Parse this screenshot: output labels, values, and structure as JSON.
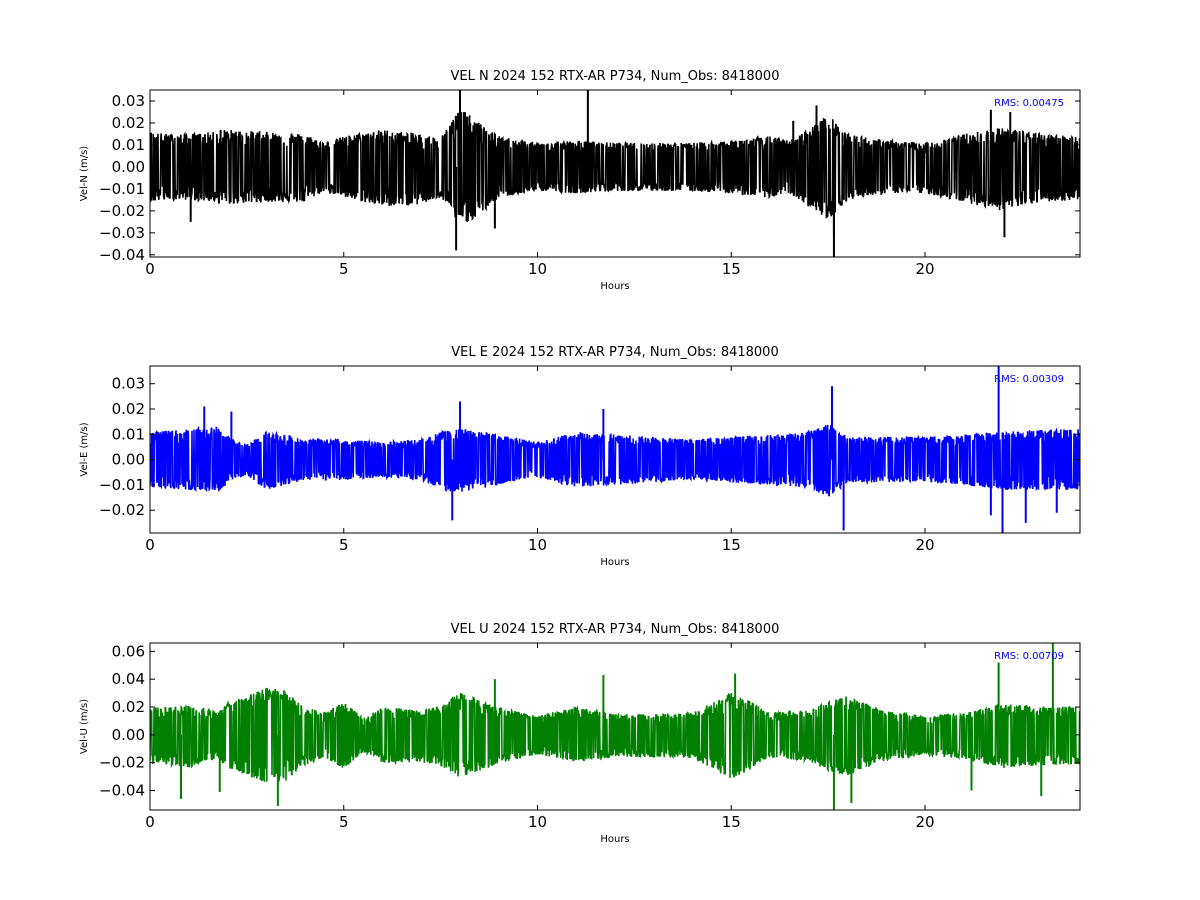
{
  "chart_data": [
    {
      "type": "line",
      "title": "VEL N 2024 152 RTX-AR  P734, Num_Obs: 8418000",
      "xlabel": "Hours",
      "ylabel": "Vel-N (m/s)",
      "xlim": [
        0,
        24
      ],
      "ylim": [
        -0.041,
        0.035
      ],
      "xticks": [
        0,
        5,
        10,
        15,
        20
      ],
      "xtick_labels": [
        "0",
        "5",
        "10",
        "15",
        "20"
      ],
      "yticks": [
        0.03,
        0.02,
        0.01,
        0.0,
        -0.01,
        -0.02,
        -0.03,
        -0.04
      ],
      "ytick_labels": [
        "0.03",
        "0.02",
        "0.01",
        "0.00",
        "−0.01",
        "−0.02",
        "−0.03",
        "−0.04"
      ],
      "rms_label": "RMS:  0.00475",
      "color": "#000000",
      "rms_color": "#0000ff",
      "grid": false,
      "envelope": {
        "x": [
          0,
          0.5,
          1,
          1.7,
          1.8,
          2,
          3,
          4,
          4.5,
          5,
          6,
          7,
          7.5,
          8,
          8.5,
          9,
          10,
          11,
          12,
          13,
          14,
          15,
          16,
          16.5,
          17,
          17.5,
          18,
          19,
          20,
          21,
          22,
          23,
          24
        ],
        "hi": [
          0.016,
          0.015,
          0.015,
          0.016,
          0.017,
          0.017,
          0.016,
          0.015,
          0.011,
          0.014,
          0.017,
          0.015,
          0.013,
          0.027,
          0.02,
          0.014,
          0.011,
          0.012,
          0.011,
          0.011,
          0.011,
          0.012,
          0.014,
          0.012,
          0.017,
          0.024,
          0.015,
          0.012,
          0.011,
          0.015,
          0.018,
          0.015,
          0.014
        ],
        "lo": [
          -0.016,
          -0.015,
          -0.015,
          -0.016,
          -0.017,
          -0.017,
          -0.016,
          -0.016,
          -0.011,
          -0.014,
          -0.018,
          -0.017,
          -0.014,
          -0.027,
          -0.022,
          -0.014,
          -0.011,
          -0.012,
          -0.011,
          -0.011,
          -0.011,
          -0.012,
          -0.014,
          -0.012,
          -0.018,
          -0.024,
          -0.015,
          -0.012,
          -0.012,
          -0.016,
          -0.02,
          -0.016,
          -0.015
        ]
      },
      "spikes": [
        {
          "x": 8.0,
          "y": 0.035
        },
        {
          "x": 7.9,
          "y": -0.038
        },
        {
          "x": 11.3,
          "y": 0.035
        },
        {
          "x": 17.65,
          "y": -0.041
        },
        {
          "x": 17.65,
          "y": -0.032
        },
        {
          "x": 17.2,
          "y": 0.028
        },
        {
          "x": 22.05,
          "y": -0.032
        },
        {
          "x": 21.7,
          "y": 0.026
        },
        {
          "x": 22.2,
          "y": 0.025
        },
        {
          "x": 1.05,
          "y": -0.025
        },
        {
          "x": 8.9,
          "y": -0.028
        },
        {
          "x": 16.6,
          "y": 0.021
        }
      ]
    },
    {
      "type": "line",
      "title": "VEL E 2024 152 RTX-AR  P734, Num_Obs: 8418000",
      "xlabel": "Hours",
      "ylabel": "Vel-E (m/s)",
      "xlim": [
        0,
        24
      ],
      "ylim": [
        -0.029,
        0.037
      ],
      "xticks": [
        0,
        5,
        10,
        15,
        20
      ],
      "xtick_labels": [
        "0",
        "5",
        "10",
        "15",
        "20"
      ],
      "yticks": [
        0.03,
        0.02,
        0.01,
        0.0,
        -0.01,
        -0.02
      ],
      "ytick_labels": [
        "0.03",
        "0.02",
        "0.01",
        "0.00",
        "−0.01",
        "−0.02"
      ],
      "rms_label": "RMS:  0.00309",
      "color": "#0000ff",
      "rms_color": "#0000ff",
      "grid": false,
      "envelope": {
        "x": [
          0,
          1,
          1.7,
          1.8,
          2,
          2.5,
          3,
          3.5,
          4,
          5,
          6,
          7,
          7.5,
          8,
          9,
          10,
          11,
          12,
          13,
          14,
          15,
          16,
          17,
          17.5,
          18,
          19,
          20,
          21,
          22,
          23,
          24
        ],
        "hi": [
          0.011,
          0.012,
          0.013,
          0.013,
          0.009,
          0.006,
          0.011,
          0.01,
          0.008,
          0.008,
          0.007,
          0.008,
          0.011,
          0.012,
          0.01,
          0.007,
          0.011,
          0.01,
          0.009,
          0.008,
          0.009,
          0.01,
          0.011,
          0.014,
          0.009,
          0.009,
          0.009,
          0.01,
          0.011,
          0.012,
          0.012
        ],
        "lo": [
          -0.011,
          -0.012,
          -0.013,
          -0.013,
          -0.009,
          -0.006,
          -0.012,
          -0.01,
          -0.008,
          -0.008,
          -0.007,
          -0.008,
          -0.012,
          -0.013,
          -0.01,
          -0.007,
          -0.011,
          -0.01,
          -0.009,
          -0.008,
          -0.009,
          -0.01,
          -0.011,
          -0.015,
          -0.009,
          -0.009,
          -0.009,
          -0.01,
          -0.012,
          -0.012,
          -0.012
        ]
      },
      "spikes": [
        {
          "x": 21.9,
          "y": 0.037
        },
        {
          "x": 22.0,
          "y": -0.029
        },
        {
          "x": 17.9,
          "y": -0.028
        },
        {
          "x": 17.6,
          "y": 0.029
        },
        {
          "x": 8.0,
          "y": 0.023
        },
        {
          "x": 7.8,
          "y": -0.024
        },
        {
          "x": 21.7,
          "y": -0.022
        },
        {
          "x": 22.6,
          "y": -0.025
        },
        {
          "x": 23.4,
          "y": -0.021
        },
        {
          "x": 1.4,
          "y": 0.021
        },
        {
          "x": 2.1,
          "y": 0.019
        },
        {
          "x": 11.7,
          "y": 0.02
        }
      ]
    },
    {
      "type": "line",
      "title": "VEL U 2024 152 RTX-AR  P734, Num_Obs: 8418000",
      "xlabel": "Hours",
      "ylabel": "Vel-U (m/s)",
      "xlim": [
        0,
        24
      ],
      "ylim": [
        -0.054,
        0.066
      ],
      "xticks": [
        0,
        5,
        10,
        15,
        20
      ],
      "xtick_labels": [
        "0",
        "5",
        "10",
        "15",
        "20"
      ],
      "yticks": [
        0.06,
        0.04,
        0.02,
        0.0,
        -0.02,
        -0.04
      ],
      "ytick_labels": [
        "0.06",
        "0.04",
        "0.02",
        "0.00",
        "−0.02",
        "−0.04"
      ],
      "rms_label": "RMS:  0.00709",
      "color": "#008000",
      "rms_color": "#0000ff",
      "grid": false,
      "envelope": {
        "x": [
          0,
          0.5,
          1,
          1.7,
          1.8,
          2,
          2.5,
          3,
          3.5,
          4,
          4.5,
          5,
          5.5,
          6,
          7,
          7.5,
          8,
          9,
          10,
          11,
          12,
          13,
          14,
          14.5,
          15,
          15.5,
          16,
          17,
          17.5,
          18,
          19,
          20,
          21,
          22,
          23,
          24
        ],
        "hi": [
          0.02,
          0.02,
          0.022,
          0.017,
          0.018,
          0.023,
          0.028,
          0.034,
          0.032,
          0.02,
          0.016,
          0.024,
          0.012,
          0.02,
          0.018,
          0.021,
          0.03,
          0.02,
          0.014,
          0.02,
          0.015,
          0.015,
          0.016,
          0.023,
          0.03,
          0.024,
          0.016,
          0.018,
          0.024,
          0.028,
          0.017,
          0.014,
          0.016,
          0.022,
          0.021,
          0.02
        ],
        "lo": [
          -0.02,
          -0.022,
          -0.024,
          -0.018,
          -0.018,
          -0.024,
          -0.03,
          -0.036,
          -0.034,
          -0.022,
          -0.016,
          -0.025,
          -0.012,
          -0.02,
          -0.02,
          -0.022,
          -0.031,
          -0.021,
          -0.014,
          -0.02,
          -0.016,
          -0.016,
          -0.017,
          -0.024,
          -0.032,
          -0.025,
          -0.016,
          -0.019,
          -0.026,
          -0.03,
          -0.018,
          -0.015,
          -0.017,
          -0.024,
          -0.022,
          -0.021
        ]
      },
      "spikes": [
        {
          "x": 23.3,
          "y": 0.066
        },
        {
          "x": 21.9,
          "y": 0.052
        },
        {
          "x": 17.65,
          "y": -0.054
        },
        {
          "x": 18.1,
          "y": -0.049
        },
        {
          "x": 3.3,
          "y": -0.051
        },
        {
          "x": 0.8,
          "y": -0.046
        },
        {
          "x": 11.7,
          "y": 0.043
        },
        {
          "x": 8.9,
          "y": 0.04
        },
        {
          "x": 1.8,
          "y": -0.041
        },
        {
          "x": 23.0,
          "y": -0.044
        },
        {
          "x": 21.2,
          "y": -0.04
        },
        {
          "x": 15.1,
          "y": 0.044
        }
      ]
    }
  ]
}
